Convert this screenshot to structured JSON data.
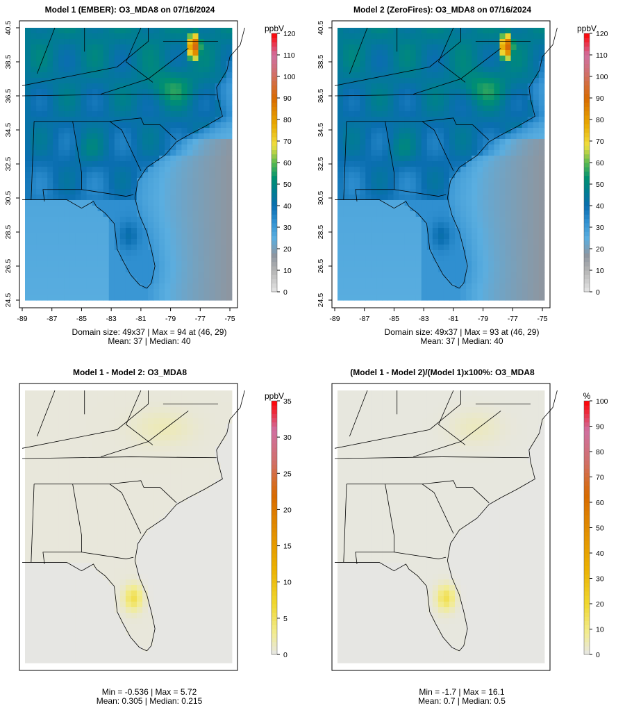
{
  "panels": [
    {
      "title": "Model 1 (EMBER): O3_MDA8 on 07/16/2024",
      "unit": "ppbV",
      "cbar_ticks": [
        0,
        10,
        20,
        30,
        40,
        50,
        60,
        70,
        80,
        90,
        100,
        110,
        120
      ],
      "cbar_max": 120,
      "footer_line1": "Domain size: 49x37 | Max = 94 at (46, 29)",
      "footer_line2": "Mean: 37 |  Median: 40",
      "show_axes": true,
      "field": "m1",
      "max": 94
    },
    {
      "title": "Model 2 (ZeroFires): O3_MDA8 on 07/16/2024",
      "unit": "ppbV",
      "cbar_ticks": [
        0,
        10,
        20,
        30,
        40,
        50,
        60,
        70,
        80,
        90,
        100,
        110,
        120
      ],
      "cbar_max": 120,
      "footer_line1": "Domain size: 49x37 | Max = 93 at (46, 29)",
      "footer_line2": "Mean: 37 |  Median: 40",
      "show_axes": true,
      "field": "m2",
      "max": 93
    },
    {
      "title": "Model 1 - Model 2: O3_MDA8",
      "unit": "ppbV",
      "cbar_ticks": [
        0,
        5,
        10,
        15,
        20,
        25,
        30,
        35
      ],
      "cbar_max": 35,
      "footer_line1": "Min = -0.536 | Max = 5.72",
      "footer_line2": "Mean: 0.305 |  Median: 0.215",
      "show_axes": false,
      "field": "diff",
      "max": 5.72
    },
    {
      "title": "(Model 1 - Model 2)/(Model 1)x100%: O3_MDA8",
      "unit": "%",
      "cbar_ticks": [
        0,
        10,
        20,
        30,
        40,
        50,
        60,
        70,
        80,
        90,
        100
      ],
      "cbar_max": 100,
      "footer_line1": "Min = -1.7 | Max = 16.1",
      "footer_line2": "Mean: 0.7 |  Median: 0.5",
      "show_axes": false,
      "field": "pct",
      "max": 16.1
    }
  ],
  "axes": {
    "x_ticks": [
      "-89",
      "-87",
      "-85",
      "-83",
      "-81",
      "-79",
      "-77",
      "-75"
    ],
    "y_ticks": [
      "40.5",
      "38.5",
      "36.5",
      "34.5",
      "32.5",
      "30.5",
      "28.5",
      "26.5",
      "24.5"
    ]
  },
  "colors": {
    "ppbv": [
      [
        0,
        "#e6e6e6"
      ],
      [
        10,
        "#b4b4b4"
      ],
      [
        17,
        "#8e96a0"
      ],
      [
        25,
        "#5aaee0"
      ],
      [
        33,
        "#2f8fd0"
      ],
      [
        40,
        "#0a6eb0"
      ],
      [
        47,
        "#007e90"
      ],
      [
        53,
        "#009070"
      ],
      [
        60,
        "#5aba50"
      ],
      [
        68,
        "#f0e040"
      ],
      [
        78,
        "#e8a800"
      ],
      [
        90,
        "#d86a00"
      ],
      [
        102,
        "#d07070"
      ],
      [
        110,
        "#d070a0"
      ],
      [
        120,
        "#ff0000"
      ]
    ],
    "diff": [
      [
        0,
        "#e6e6e6"
      ],
      [
        3,
        "#f2ec90"
      ],
      [
        7,
        "#f0d830"
      ],
      [
        12,
        "#ebb000"
      ],
      [
        18,
        "#e08800"
      ],
      [
        22,
        "#d86a00"
      ],
      [
        27,
        "#d07070"
      ],
      [
        31,
        "#d070a0"
      ],
      [
        35,
        "#ff0000"
      ]
    ]
  }
}
